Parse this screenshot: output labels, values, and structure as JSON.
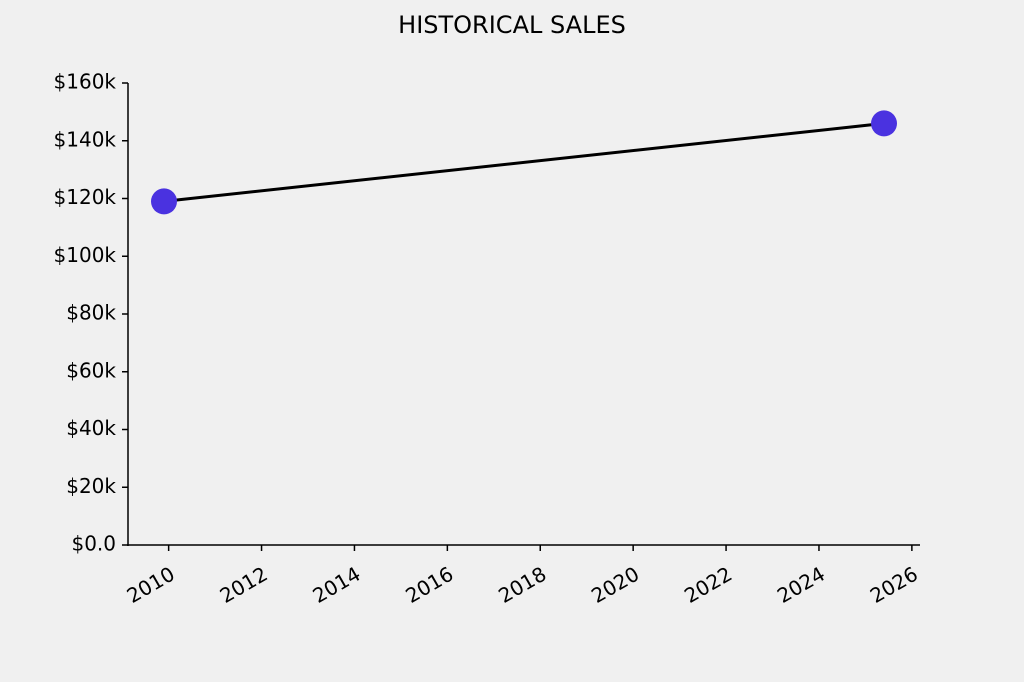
{
  "chart_data": {
    "type": "line",
    "title": "HISTORICAL SALES",
    "x": [
      2009.9,
      2025.4
    ],
    "series": [
      {
        "values": [
          119000,
          146000
        ],
        "color": "#000000",
        "marker_color": "#4a32e0"
      }
    ],
    "xlim": [
      2009.125,
      2026.175
    ],
    "xticks": [
      2010,
      2012,
      2014,
      2016,
      2018,
      2020,
      2022,
      2024,
      2026
    ],
    "ylim": [
      0,
      160000
    ],
    "yticks": [
      {
        "value": 0,
        "label": "$0.0"
      },
      {
        "value": 20000,
        "label": "$20k"
      },
      {
        "value": 40000,
        "label": "$40k"
      },
      {
        "value": 60000,
        "label": "$60k"
      },
      {
        "value": 80000,
        "label": "$80k"
      },
      {
        "value": 100000,
        "label": "$100k"
      },
      {
        "value": 120000,
        "label": "$120k"
      },
      {
        "value": 140000,
        "label": "$140k"
      },
      {
        "value": 160000,
        "label": "$160k"
      }
    ],
    "grid": false
  }
}
